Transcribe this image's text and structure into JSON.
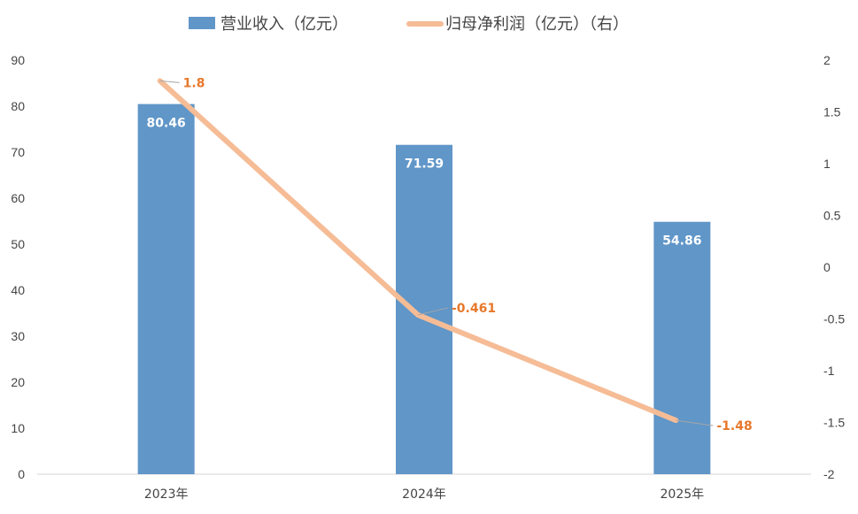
{
  "chart_data": {
    "type": "bar",
    "categories": [
      "2023年",
      "2024年",
      "2025年"
    ],
    "series": [
      {
        "name": "营业收入（亿元）",
        "type": "bar",
        "axis": "left",
        "values": [
          80.46,
          71.59,
          54.86
        ],
        "labels": [
          "80.46",
          "71.59",
          "54.86"
        ]
      },
      {
        "name": "归母净利润（亿元）（右）",
        "type": "line",
        "axis": "right",
        "values": [
          1.8,
          -0.461,
          -1.48
        ],
        "labels": [
          "1.8",
          "-0.461",
          "-1.48"
        ]
      }
    ],
    "left_axis": {
      "min": 0,
      "max": 90,
      "ticks": [
        "0",
        "10",
        "20",
        "30",
        "40",
        "50",
        "60",
        "70",
        "80",
        "90"
      ]
    },
    "right_axis": {
      "min": -2,
      "max": 2,
      "ticks": [
        "-2",
        "-1.5",
        "-1",
        "-0.5",
        "0",
        "0.5",
        "1",
        "1.5",
        "2"
      ]
    },
    "legend": "top-center",
    "grid": false,
    "colors": {
      "bar": "#6096c8",
      "line": "#f5bc96",
      "line_label": "#e8782a",
      "axis_text": "#444444"
    }
  }
}
